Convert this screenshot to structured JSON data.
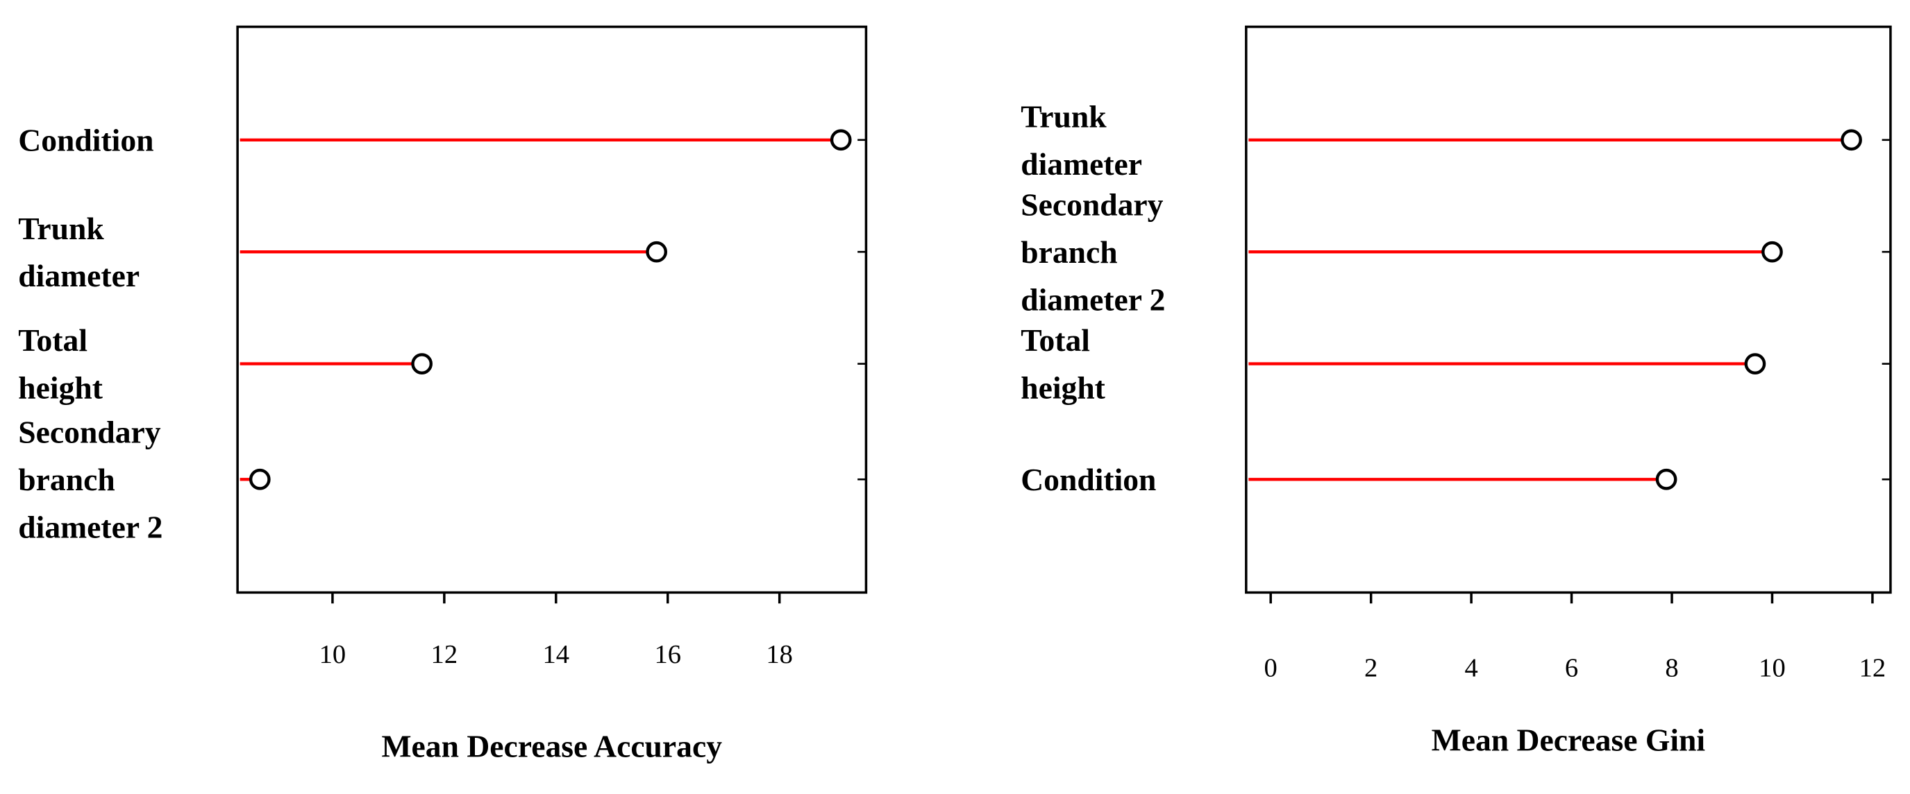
{
  "chart_data": [
    {
      "type": "dot",
      "xlabel": "Mean Decrease Accuracy",
      "categories": [
        "Condition",
        "Trunk\ndiameter",
        "Total\nheight",
        "Secondary\nbranch\ndiameter 2"
      ],
      "values": [
        19.1,
        15.8,
        11.6,
        8.7
      ],
      "color": "#ff0000",
      "xlim": [
        8.3,
        19.55
      ],
      "xticks": [
        10,
        12,
        14,
        16,
        18
      ]
    },
    {
      "type": "dot",
      "xlabel": "Mean Decrease Gini",
      "categories": [
        "Trunk\ndiameter",
        "Secondary\nbranch\ndiameter 2",
        "Total\nheight",
        "Condition"
      ],
      "values": [
        11.58,
        10.0,
        9.66,
        7.89
      ],
      "color": "#ff0000",
      "xlim": [
        -0.49,
        12.36
      ],
      "xticks": [
        0,
        2,
        4,
        6,
        8,
        10,
        12
      ]
    }
  ]
}
